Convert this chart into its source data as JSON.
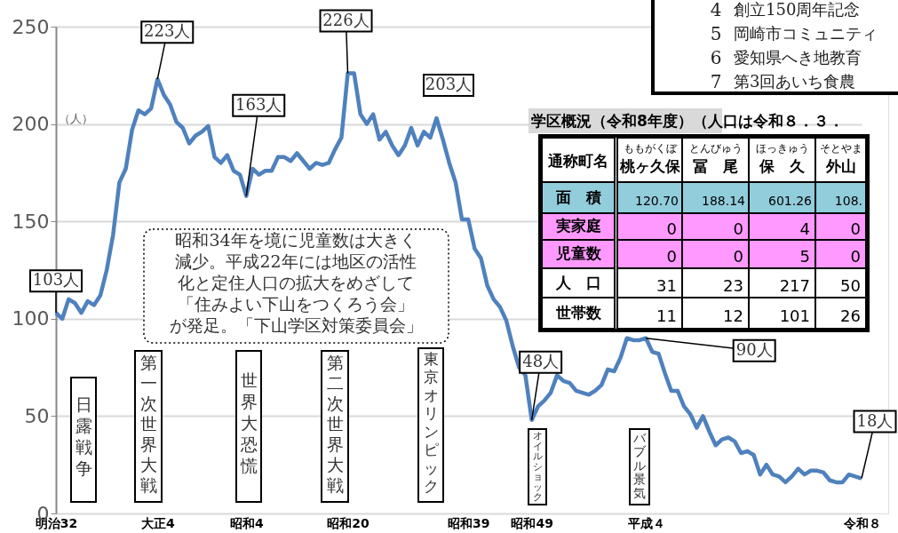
{
  "chart_data": {
    "type": "line",
    "ylabel": "（人）",
    "categories": [
      "明治32",
      null,
      null,
      null,
      null,
      null,
      null,
      null,
      null,
      null,
      null,
      null,
      null,
      null,
      null,
      null,
      "大正4",
      null,
      null,
      null,
      null,
      null,
      null,
      null,
      null,
      null,
      null,
      null,
      null,
      null,
      "昭和4",
      null,
      null,
      null,
      null,
      null,
      null,
      null,
      null,
      null,
      null,
      null,
      null,
      null,
      null,
      null,
      "昭和20",
      null,
      null,
      null,
      null,
      null,
      null,
      null,
      null,
      null,
      null,
      null,
      null,
      null,
      null,
      null,
      null,
      null,
      null,
      "昭和39",
      null,
      null,
      null,
      null,
      null,
      null,
      null,
      null,
      null,
      "昭和49",
      null,
      null,
      null,
      null,
      null,
      null,
      null,
      null,
      null,
      null,
      null,
      null,
      null,
      null,
      null,
      null,
      null,
      "平成４",
      null,
      null,
      null,
      null,
      null,
      null,
      null,
      null,
      null,
      null,
      null,
      null,
      null,
      null,
      null,
      null,
      null,
      null,
      null,
      null,
      null,
      null,
      null,
      null,
      null,
      null,
      null,
      null,
      null,
      null,
      null,
      null,
      null,
      "令和８"
    ],
    "series": [
      {
        "color": "#4f81bd",
        "values": [
          103,
          100,
          110,
          108,
          103,
          109,
          107,
          112,
          125,
          143,
          170,
          177,
          197,
          207,
          205,
          208,
          223,
          215,
          210,
          201,
          198,
          190,
          194,
          196,
          199,
          183,
          180,
          184,
          176,
          174,
          163,
          177,
          174,
          176,
          176,
          183,
          183,
          181,
          185,
          181,
          177,
          180,
          179,
          180,
          187,
          193,
          226,
          226,
          205,
          200,
          205,
          192,
          196,
          189,
          184,
          189,
          198,
          189,
          196,
          193,
          203,
          192,
          180,
          170,
          151,
          151,
          136,
          131,
          117,
          110,
          106,
          99,
          86,
          75,
          71,
          48,
          55,
          58,
          62,
          71,
          68,
          67,
          63,
          62,
          61,
          63,
          66,
          74,
          73,
          80,
          90,
          89,
          89,
          90,
          83,
          82,
          72,
          63,
          63,
          55,
          51,
          44,
          50,
          42,
          35,
          38,
          39,
          37,
          31,
          32,
          30,
          20,
          25,
          20,
          19,
          16,
          19,
          23,
          20,
          22,
          22,
          21,
          17,
          16,
          16,
          20,
          19,
          18
        ]
      }
    ],
    "ylim": [
      0,
      250
    ],
    "yticks": [
      0,
      50,
      100,
      150,
      200,
      250
    ],
    "grid": "y",
    "marker": "none",
    "line_style": "solid",
    "annotations": [
      "昭和34年を境に児童数は大きく減少。平成22年には地区の活性化と定住人口の拡大をめざして「住みよい下山をつくろう会」が発足。「下山学区対策委員会」",
      "日露戦争",
      "第一次世界大戦",
      "世界大恐慌",
      "第二次世界大戦",
      "東京オリンピック",
      "オイルショック",
      "バブル景気",
      {
        "text": "103人",
        "x": "明治32",
        "y": 103
      },
      {
        "text": "223人",
        "x": "大正4",
        "y": 223
      },
      {
        "text": "163人",
        "x": "昭和4",
        "y": 163
      },
      {
        "text": "226人",
        "x": "昭和20",
        "y": 226
      },
      "203人",
      {
        "text": "48人",
        "x": "昭和49",
        "y": 48
      },
      {
        "text": "90人",
        "x": "平成４",
        "y": 90
      },
      {
        "text": "18人",
        "x": "令和８",
        "y": 18
      },
      "4",
      "創立150周年記念",
      "5",
      "岡崎市コミュニティ",
      "6",
      "愛知県へき地教育",
      "7",
      "第3回あいち食農",
      "学区概況（令和8年度）（人口は令和８．３．",
      "通称町名",
      "ももがくぼ",
      "桃ヶ久保",
      "とんびゅう",
      "冨　尾",
      "ほっきゅう",
      "保　久",
      "そとやま",
      "外山",
      "面　積",
      "120.70",
      "188.14",
      "601.26",
      "108.",
      "実家庭",
      "0",
      "0",
      "4",
      "0",
      "児童数",
      "0",
      "0",
      "5",
      "0",
      "人　口",
      "31",
      "23",
      "217",
      "50",
      "世帯数",
      "11",
      "12",
      "101",
      "26"
    ]
  }
}
